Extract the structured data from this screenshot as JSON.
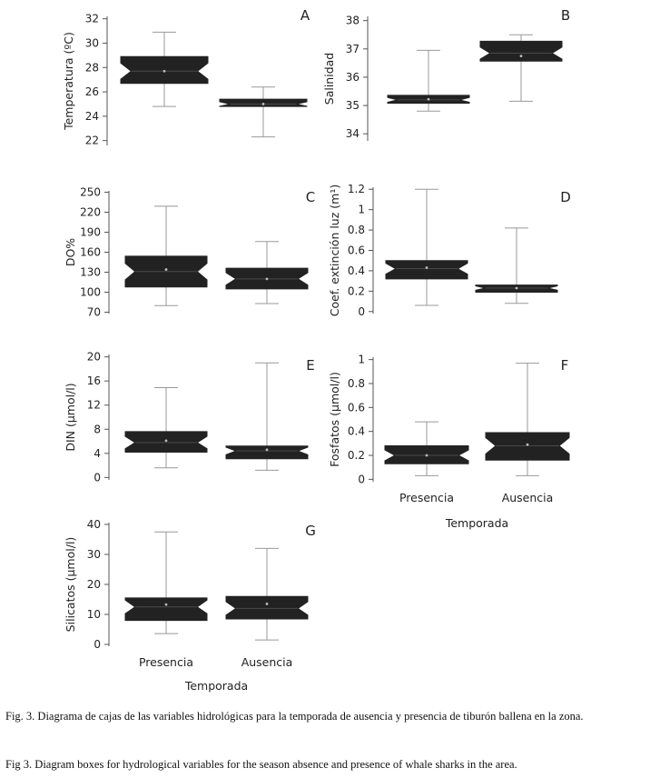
{
  "chart_data": [
    {
      "type": "box",
      "panel": "A",
      "ylabel": "Temperatura (ºC)",
      "yticks": [
        22,
        24,
        26,
        28,
        30,
        32
      ],
      "ylim": [
        21.6,
        32.2
      ],
      "categories": [
        "Presencia",
        "Ausencia"
      ],
      "boxes": [
        {
          "min": 24.8,
          "q1": 26.7,
          "median": 27.7,
          "q3": 28.9,
          "max": 30.9,
          "mean": 27.7
        },
        {
          "min": 22.3,
          "q1": 24.8,
          "median": 25.0,
          "q3": 25.4,
          "max": 26.4,
          "mean": 25.0
        }
      ]
    },
    {
      "type": "box",
      "panel": "B",
      "ylabel": "Salinidad",
      "yticks": [
        34,
        35,
        36,
        37,
        38
      ],
      "ylim": [
        33.75,
        38.15
      ],
      "categories": [
        "Presencia",
        "Ausencia"
      ],
      "boxes": [
        {
          "min": 34.8,
          "q1": 35.08,
          "median": 35.2,
          "q3": 35.36,
          "max": 36.95,
          "mean": 35.22
        },
        {
          "min": 35.15,
          "q1": 36.57,
          "median": 36.85,
          "q3": 37.27,
          "max": 37.5,
          "mean": 36.75
        }
      ]
    },
    {
      "type": "box",
      "panel": "C",
      "ylabel": "DO%",
      "yticks": [
        70,
        100,
        130,
        160,
        190,
        220,
        250
      ],
      "ylim": [
        68,
        252
      ],
      "categories": [
        "Presencia",
        "Ausencia"
      ],
      "boxes": [
        {
          "min": 80,
          "q1": 108,
          "median": 131,
          "q3": 154,
          "max": 229,
          "mean": 134
        },
        {
          "min": 83,
          "q1": 105,
          "median": 120,
          "q3": 136,
          "max": 176,
          "mean": 120
        }
      ]
    },
    {
      "type": "box",
      "panel": "D",
      "ylabel": "Coef. extinción luz (m¹)",
      "yticks": [
        0,
        0.2,
        0.4,
        0.6,
        0.8,
        1,
        1.2
      ],
      "ylim": [
        -0.02,
        1.22
      ],
      "categories": [
        "Presencia",
        "Ausencia"
      ],
      "boxes": [
        {
          "min": 0.06,
          "q1": 0.32,
          "median": 0.42,
          "q3": 0.5,
          "max": 1.2,
          "mean": 0.43
        },
        {
          "min": 0.08,
          "q1": 0.19,
          "median": 0.23,
          "q3": 0.26,
          "max": 0.82,
          "mean": 0.23
        }
      ]
    },
    {
      "type": "box",
      "panel": "E",
      "ylabel": "DIN (µmol/l)",
      "yticks": [
        0,
        4,
        8,
        12,
        16,
        20
      ],
      "ylim": [
        -0.4,
        20.4
      ],
      "categories": [
        "Presencia",
        "Ausencia"
      ],
      "boxes": [
        {
          "min": 1.6,
          "q1": 4.2,
          "median": 5.8,
          "q3": 7.6,
          "max": 14.9,
          "mean": 6.1
        },
        {
          "min": 1.2,
          "q1": 3.1,
          "median": 4.4,
          "q3": 5.2,
          "max": 19.0,
          "mean": 4.6
        }
      ]
    },
    {
      "type": "box",
      "panel": "F",
      "ylabel": "Fosfatos (µmol/l)",
      "yticks": [
        0,
        0.2,
        0.4,
        0.6,
        0.8,
        1
      ],
      "ylim": [
        -0.02,
        1.02
      ],
      "categories": [
        "Presencia",
        "Ausencia"
      ],
      "xlabel": "Temporada",
      "boxes": [
        {
          "min": 0.03,
          "q1": 0.13,
          "median": 0.2,
          "q3": 0.28,
          "max": 0.48,
          "mean": 0.2
        },
        {
          "min": 0.03,
          "q1": 0.16,
          "median": 0.28,
          "q3": 0.39,
          "max": 0.97,
          "mean": 0.29
        }
      ]
    },
    {
      "type": "box",
      "panel": "G",
      "ylabel": "Silicatos (µmol/l)",
      "yticks": [
        0,
        10,
        20,
        30,
        40
      ],
      "ylim": [
        -0.6,
        40.6
      ],
      "categories": [
        "Presencia",
        "Ausencia"
      ],
      "xlabel": "Temporada",
      "boxes": [
        {
          "min": 3.6,
          "q1": 8.0,
          "median": 12.5,
          "q3": 15.5,
          "max": 37.5,
          "mean": 13.3
        },
        {
          "min": 1.5,
          "q1": 8.5,
          "median": 12.0,
          "q3": 16.0,
          "max": 32.0,
          "mean": 13.5
        }
      ]
    }
  ],
  "colors": {
    "box": "#222222",
    "whisker": "#999999",
    "axis": "#555555",
    "mean": "#bbbbbb"
  },
  "captions": {
    "es": "Fig. 3. Diagrama de cajas de las variables hidrológicas para la temporada de ausencia y presencia de tiburón ballena en la zona.",
    "en": "Fig 3. Diagram boxes for hydrological variables for the season absence and presence of whale sharks in the area."
  }
}
